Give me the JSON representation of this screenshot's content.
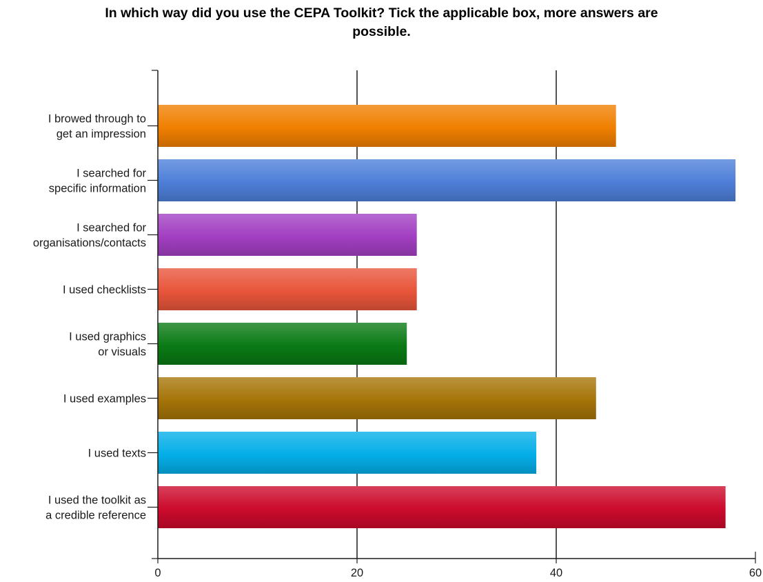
{
  "chart_data": {
    "type": "bar",
    "orientation": "horizontal",
    "title": "In which way did you use the CEPA Toolkit? Tick the applicable box, more answers are possible.",
    "categories": [
      "I browed through to get an impression",
      "I searched for specific information",
      "I searched for organisations/contacts",
      "I used checklists",
      "I used graphics or visuals",
      "I used examples",
      "I used texts",
      "I used the toolkit as a credible reference"
    ],
    "category_label_lines": [
      [
        "I browed through to",
        "get an impression"
      ],
      [
        "I searched for",
        "specific information"
      ],
      [
        "I searched for",
        "organisations/contacts"
      ],
      [
        "I used checklists"
      ],
      [
        "I used graphics",
        "or visuals"
      ],
      [
        "I used examples"
      ],
      [
        "I used texts"
      ],
      [
        "I used the toolkit as",
        "a credible reference"
      ]
    ],
    "values": [
      46,
      58,
      26,
      26,
      25,
      44,
      38,
      57
    ],
    "bar_colors": [
      "#f07f00",
      "#4d7fd8",
      "#a23fc2",
      "#e8553a",
      "#0a7a14",
      "#a57408",
      "#04aee8",
      "#cc0a2c"
    ],
    "xlim": [
      0,
      60
    ],
    "x_ticks": [
      0,
      20,
      40,
      60
    ],
    "xlabel": "",
    "ylabel": "",
    "grid": "vertical lines at major ticks",
    "legend": "none"
  }
}
